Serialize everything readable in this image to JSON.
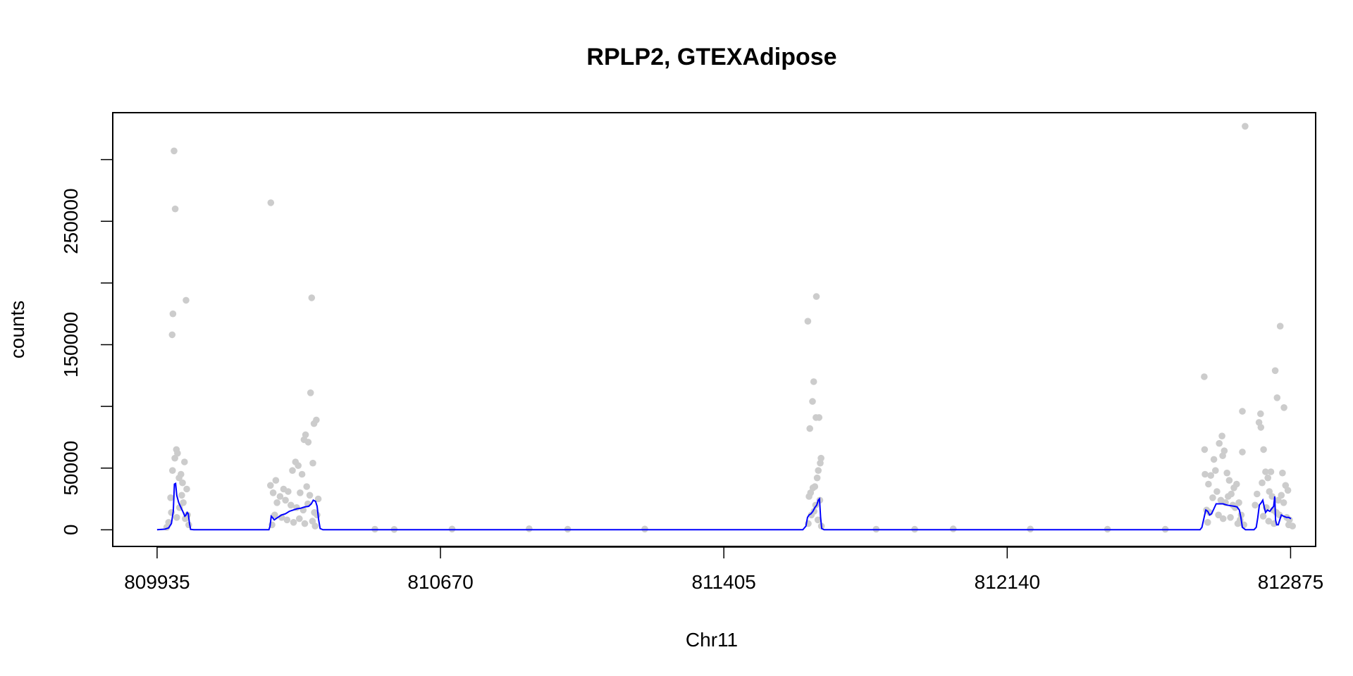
{
  "chart_data": {
    "type": "scatter",
    "title": "RPLP2, GTEXAdipose",
    "xlabel": "Chr11",
    "ylabel": "counts",
    "xlim": [
      809820,
      812940
    ],
    "ylim": [
      -13500,
      338000
    ],
    "x_ticks": [
      809935,
      810670,
      811405,
      812140,
      812875
    ],
    "x_tick_labels": [
      "809935",
      "810670",
      "811405",
      "812140",
      "812875"
    ],
    "y_ticks": [
      0,
      50000,
      100000,
      150000,
      200000,
      250000,
      300000
    ],
    "y_tick_labels": [
      "0",
      "50000",
      "",
      "150000",
      "",
      "250000",
      ""
    ],
    "grid": false,
    "legend": "none",
    "colors": {
      "points": "#cccccc",
      "line": "#0000ff"
    },
    "series": [
      {
        "kind": "points",
        "points": [
          [
            809979,
            307000
          ],
          [
            809982,
            260000
          ],
          [
            809976,
            175000
          ],
          [
            809974,
            158000
          ],
          [
            810010,
            186000
          ],
          [
            809981,
            58000
          ],
          [
            809985,
            65000
          ],
          [
            809988,
            62000
          ],
          [
            809992,
            42000
          ],
          [
            809997,
            45000
          ],
          [
            810001,
            38000
          ],
          [
            810006,
            55000
          ],
          [
            810012,
            33000
          ],
          [
            809970,
            26000
          ],
          [
            809975,
            48000
          ],
          [
            810003,
            22000
          ],
          [
            809993,
            18000
          ],
          [
            810014,
            12000
          ],
          [
            809986,
            10000
          ],
          [
            809965,
            6000
          ],
          [
            809972,
            14000
          ],
          [
            809999,
            28000
          ],
          [
            810008,
            9000
          ],
          [
            810017,
            4000
          ],
          [
            809960,
            2000
          ],
          [
            810230,
            265000
          ],
          [
            810336,
            188000
          ],
          [
            810333,
            111000
          ],
          [
            810348,
            89000
          ],
          [
            810342,
            86000
          ],
          [
            810320,
            77000
          ],
          [
            810316,
            73000
          ],
          [
            810327,
            71000
          ],
          [
            810294,
            55000
          ],
          [
            810301,
            52000
          ],
          [
            810311,
            45000
          ],
          [
            810286,
            48000
          ],
          [
            810339,
            54000
          ],
          [
            810243,
            40000
          ],
          [
            810263,
            33000
          ],
          [
            810275,
            31000
          ],
          [
            810306,
            30000
          ],
          [
            810323,
            35000
          ],
          [
            810331,
            28000
          ],
          [
            810254,
            27000
          ],
          [
            810268,
            24000
          ],
          [
            810229,
            36000
          ],
          [
            810236,
            30000
          ],
          [
            810246,
            22000
          ],
          [
            810282,
            20000
          ],
          [
            810297,
            18000
          ],
          [
            810314,
            16000
          ],
          [
            810326,
            21000
          ],
          [
            810343,
            14000
          ],
          [
            810350,
            12000
          ],
          [
            810353,
            25000
          ],
          [
            810240,
            12000
          ],
          [
            810258,
            10000
          ],
          [
            810272,
            8000
          ],
          [
            810289,
            6000
          ],
          [
            810304,
            9000
          ],
          [
            810318,
            5000
          ],
          [
            810338,
            7000
          ],
          [
            810233,
            4000
          ],
          [
            810345,
            3000
          ],
          [
            811645,
            189000
          ],
          [
            811623,
            169000
          ],
          [
            811638,
            120000
          ],
          [
            811635,
            104000
          ],
          [
            811644,
            91000
          ],
          [
            811652,
            91000
          ],
          [
            811628,
            82000
          ],
          [
            811657,
            58000
          ],
          [
            811655,
            54000
          ],
          [
            811650,
            48000
          ],
          [
            811647,
            42000
          ],
          [
            811641,
            35000
          ],
          [
            811636,
            34000
          ],
          [
            811630,
            30000
          ],
          [
            811654,
            24000
          ],
          [
            811626,
            27000
          ],
          [
            811643,
            20000
          ],
          [
            811639,
            15000
          ],
          [
            811632,
            12000
          ],
          [
            811649,
            8000
          ],
          [
            811624,
            5000
          ],
          [
            811658,
            3000
          ],
          [
            812651,
            124000
          ],
          [
            812757,
            327000
          ],
          [
            812750,
            96000
          ],
          [
            812697,
            76000
          ],
          [
            812690,
            70000
          ],
          [
            812703,
            64000
          ],
          [
            812652,
            65000
          ],
          [
            812653,
            45000
          ],
          [
            812750,
            63000
          ],
          [
            812699,
            60000
          ],
          [
            812676,
            57000
          ],
          [
            812662,
            37000
          ],
          [
            812668,
            44000
          ],
          [
            812680,
            48000
          ],
          [
            812710,
            46000
          ],
          [
            812716,
            40000
          ],
          [
            812728,
            34000
          ],
          [
            812735,
            37000
          ],
          [
            812684,
            31000
          ],
          [
            812721,
            29000
          ],
          [
            812673,
            26000
          ],
          [
            812694,
            24000
          ],
          [
            812706,
            22000
          ],
          [
            812713,
            27000
          ],
          [
            812725,
            20000
          ],
          [
            812731,
            18000
          ],
          [
            812741,
            22000
          ],
          [
            812657,
            16000
          ],
          [
            812665,
            14000
          ],
          [
            812688,
            12000
          ],
          [
            812719,
            10000
          ],
          [
            812744,
            8000
          ],
          [
            812660,
            6000
          ],
          [
            812700,
            9000
          ],
          [
            812738,
            5000
          ],
          [
            812754,
            4000
          ],
          [
            812747,
            12000
          ],
          [
            812848,
            165000
          ],
          [
            812835,
            129000
          ],
          [
            812840,
            107000
          ],
          [
            812797,
            94000
          ],
          [
            812793,
            87000
          ],
          [
            812858,
            99000
          ],
          [
            812798,
            83000
          ],
          [
            812805,
            65000
          ],
          [
            812854,
            46000
          ],
          [
            812810,
            47000
          ],
          [
            812816,
            42000
          ],
          [
            812824,
            47000
          ],
          [
            812862,
            36000
          ],
          [
            812868,
            32000
          ],
          [
            812801,
            38000
          ],
          [
            812788,
            29000
          ],
          [
            812783,
            20000
          ],
          [
            812820,
            31000
          ],
          [
            812827,
            27000
          ],
          [
            812843,
            24000
          ],
          [
            812851,
            28000
          ],
          [
            812857,
            22000
          ],
          [
            812812,
            18000
          ],
          [
            812830,
            16000
          ],
          [
            812838,
            14000
          ],
          [
            812846,
            12000
          ],
          [
            812865,
            10000
          ],
          [
            812872,
            8000
          ],
          [
            812804,
            11000
          ],
          [
            812818,
            7000
          ],
          [
            812832,
            5000
          ],
          [
            812870,
            4000
          ],
          [
            812880,
            3000
          ],
          [
            810500,
            500
          ],
          [
            810900,
            800
          ],
          [
            811200,
            600
          ],
          [
            812000,
            700
          ],
          [
            812400,
            500
          ],
          [
            811900,
            400
          ],
          [
            810700,
            600
          ],
          [
            811000,
            500
          ],
          [
            812200,
            600
          ],
          [
            812550,
            400
          ],
          [
            810550,
            300
          ],
          [
            811800,
            500
          ]
        ]
      },
      {
        "kind": "line",
        "points": [
          [
            809935,
            0
          ],
          [
            809955,
            500
          ],
          [
            809965,
            1500
          ],
          [
            809972,
            5000
          ],
          [
            809977,
            15000
          ],
          [
            809980,
            37000
          ],
          [
            809983,
            37500
          ],
          [
            809986,
            28000
          ],
          [
            809991,
            22000
          ],
          [
            809997,
            18000
          ],
          [
            810003,
            14000
          ],
          [
            810007,
            11000
          ],
          [
            810010,
            12000
          ],
          [
            810013,
            14000
          ],
          [
            810016,
            13000
          ],
          [
            810019,
            5000
          ],
          [
            810022,
            300
          ],
          [
            810030,
            0
          ],
          [
            810225,
            0
          ],
          [
            810228,
            3000
          ],
          [
            810231,
            11000
          ],
          [
            810234,
            10000
          ],
          [
            810239,
            8000
          ],
          [
            810248,
            10000
          ],
          [
            810258,
            12000
          ],
          [
            810268,
            13000
          ],
          [
            810278,
            15000
          ],
          [
            810288,
            16000
          ],
          [
            810298,
            17000
          ],
          [
            810308,
            17500
          ],
          [
            810318,
            18500
          ],
          [
            810328,
            19000
          ],
          [
            810335,
            21000
          ],
          [
            810340,
            24000
          ],
          [
            810346,
            23000
          ],
          [
            810350,
            19000
          ],
          [
            810354,
            8000
          ],
          [
            810358,
            1000
          ],
          [
            810365,
            0
          ],
          [
            811610,
            0
          ],
          [
            811618,
            3000
          ],
          [
            811622,
            10000
          ],
          [
            811626,
            12000
          ],
          [
            811631,
            13000
          ],
          [
            811636,
            15000
          ],
          [
            811641,
            18000
          ],
          [
            811646,
            20000
          ],
          [
            811650,
            24000
          ],
          [
            811653,
            25000
          ],
          [
            811656,
            10000
          ],
          [
            811659,
            1000
          ],
          [
            811665,
            0
          ],
          [
            812640,
            0
          ],
          [
            812645,
            2000
          ],
          [
            812650,
            9000
          ],
          [
            812655,
            16000
          ],
          [
            812660,
            15000
          ],
          [
            812665,
            12000
          ],
          [
            812670,
            13000
          ],
          [
            812676,
            17000
          ],
          [
            812682,
            21000
          ],
          [
            812690,
            21000
          ],
          [
            812700,
            21000
          ],
          [
            812710,
            20000
          ],
          [
            812720,
            19500
          ],
          [
            812730,
            19000
          ],
          [
            812736,
            18500
          ],
          [
            812742,
            16000
          ],
          [
            812746,
            10000
          ],
          [
            812750,
            2000
          ],
          [
            812758,
            0
          ],
          [
            812780,
            0
          ],
          [
            812786,
            2000
          ],
          [
            812790,
            10000
          ],
          [
            812794,
            20000
          ],
          [
            812799,
            22000
          ],
          [
            812803,
            24000
          ],
          [
            812807,
            18000
          ],
          [
            812810,
            14000
          ],
          [
            812815,
            16000
          ],
          [
            812821,
            15000
          ],
          [
            812826,
            17000
          ],
          [
            812831,
            19000
          ],
          [
            812834,
            27000
          ],
          [
            812836,
            8000
          ],
          [
            812839,
            4000
          ],
          [
            812843,
            4000
          ],
          [
            812847,
            8000
          ],
          [
            812851,
            12000
          ],
          [
            812857,
            11000
          ],
          [
            812864,
            10000
          ],
          [
            812870,
            10000
          ],
          [
            812876,
            9000
          ]
        ]
      }
    ]
  }
}
